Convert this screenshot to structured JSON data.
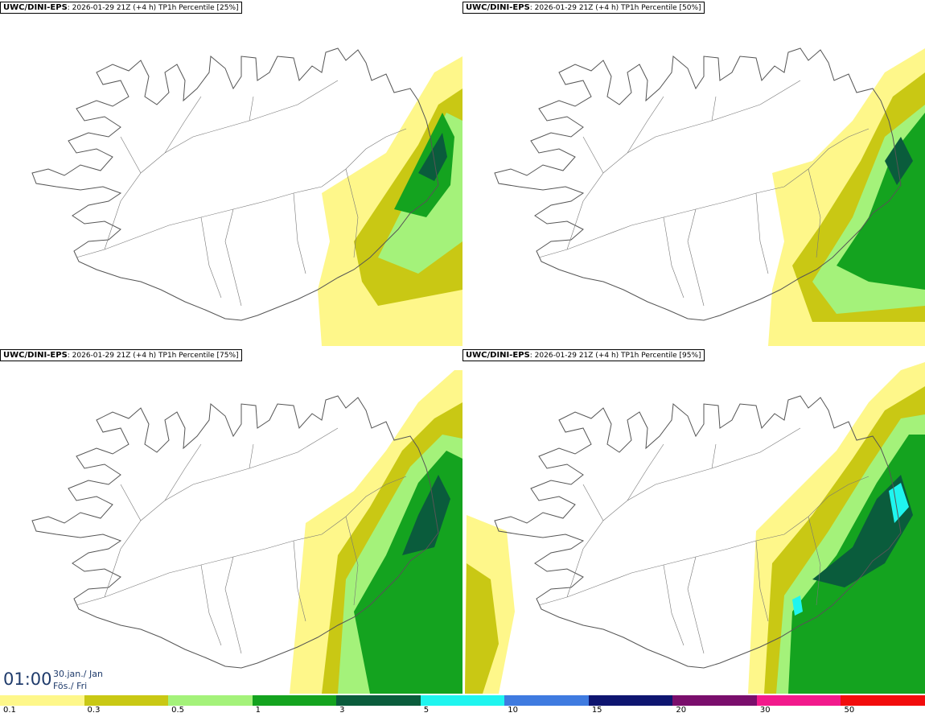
{
  "panels": [
    {
      "model": "UWC/DINI-EPS",
      "run": ": 2026-01-29 21Z (+4 h)",
      "field": " TP1h Percentile [25%]",
      "level": 1
    },
    {
      "model": "UWC/DINI-EPS",
      "run": ": 2026-01-29 21Z (+4 h)",
      "field": " TP1h Percentile [50%]",
      "level": 2
    },
    {
      "model": "UWC/DINI-EPS",
      "run": ": 2026-01-29 21Z (+4 h)",
      "field": " TP1h Percentile [75%]",
      "level": 3
    },
    {
      "model": "UWC/DINI-EPS",
      "run": ": 2026-01-29 21Z (+4 h)",
      "field": " TP1h Percentile [95%]",
      "level": 4
    }
  ],
  "timestamp": {
    "time": "01:00",
    "date_line1": "30.jan./ Jan",
    "date_line2": "Fös./ Fri"
  },
  "legend": {
    "labels": [
      "0.1",
      "0.3",
      "0.5",
      "1",
      "3",
      "5",
      "10",
      "15",
      "20",
      "30",
      "50"
    ],
    "colors": [
      "#fef78a",
      "#c9c814",
      "#a4f27a",
      "#14a31f",
      "#0a5c3c",
      "#1ff5ef",
      "#3f7be0",
      "#0e1570",
      "#7a0e6c",
      "#f21a8c",
      "#f20d0d"
    ]
  },
  "colors": {
    "land_outline": "#555555",
    "border": "#000000",
    "title_text": "#1f3b6b"
  }
}
